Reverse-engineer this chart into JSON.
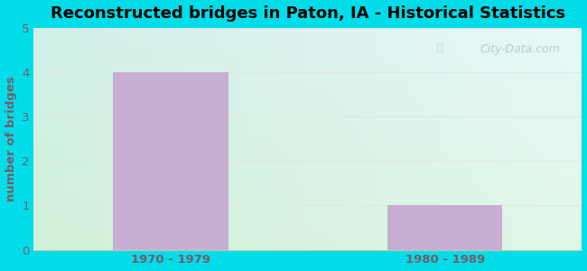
{
  "title": "Reconstructed bridges in Paton, IA - Historical Statistics",
  "categories": [
    "1970 - 1979",
    "1980 - 1989"
  ],
  "values": [
    4,
    1
  ],
  "bar_color": "#c9aed4",
  "ylabel": "number of bridges",
  "ylim": [
    0,
    5
  ],
  "yticks": [
    0,
    1,
    2,
    3,
    4,
    5
  ],
  "background_outer": "#00dde8",
  "bg_top_left": "#d0f0e8",
  "bg_top_right": "#e8f8f8",
  "bg_bottom_left": "#d8f0d8",
  "bg_bottom_right": "#e0f8e8",
  "title_fontsize": 13,
  "axis_label_color": "#7a5a6a",
  "tick_label_color": "#7a5a6a",
  "watermark_text": "City-Data.com",
  "bar_width": 0.42,
  "grid_color": "#e0e8e0"
}
